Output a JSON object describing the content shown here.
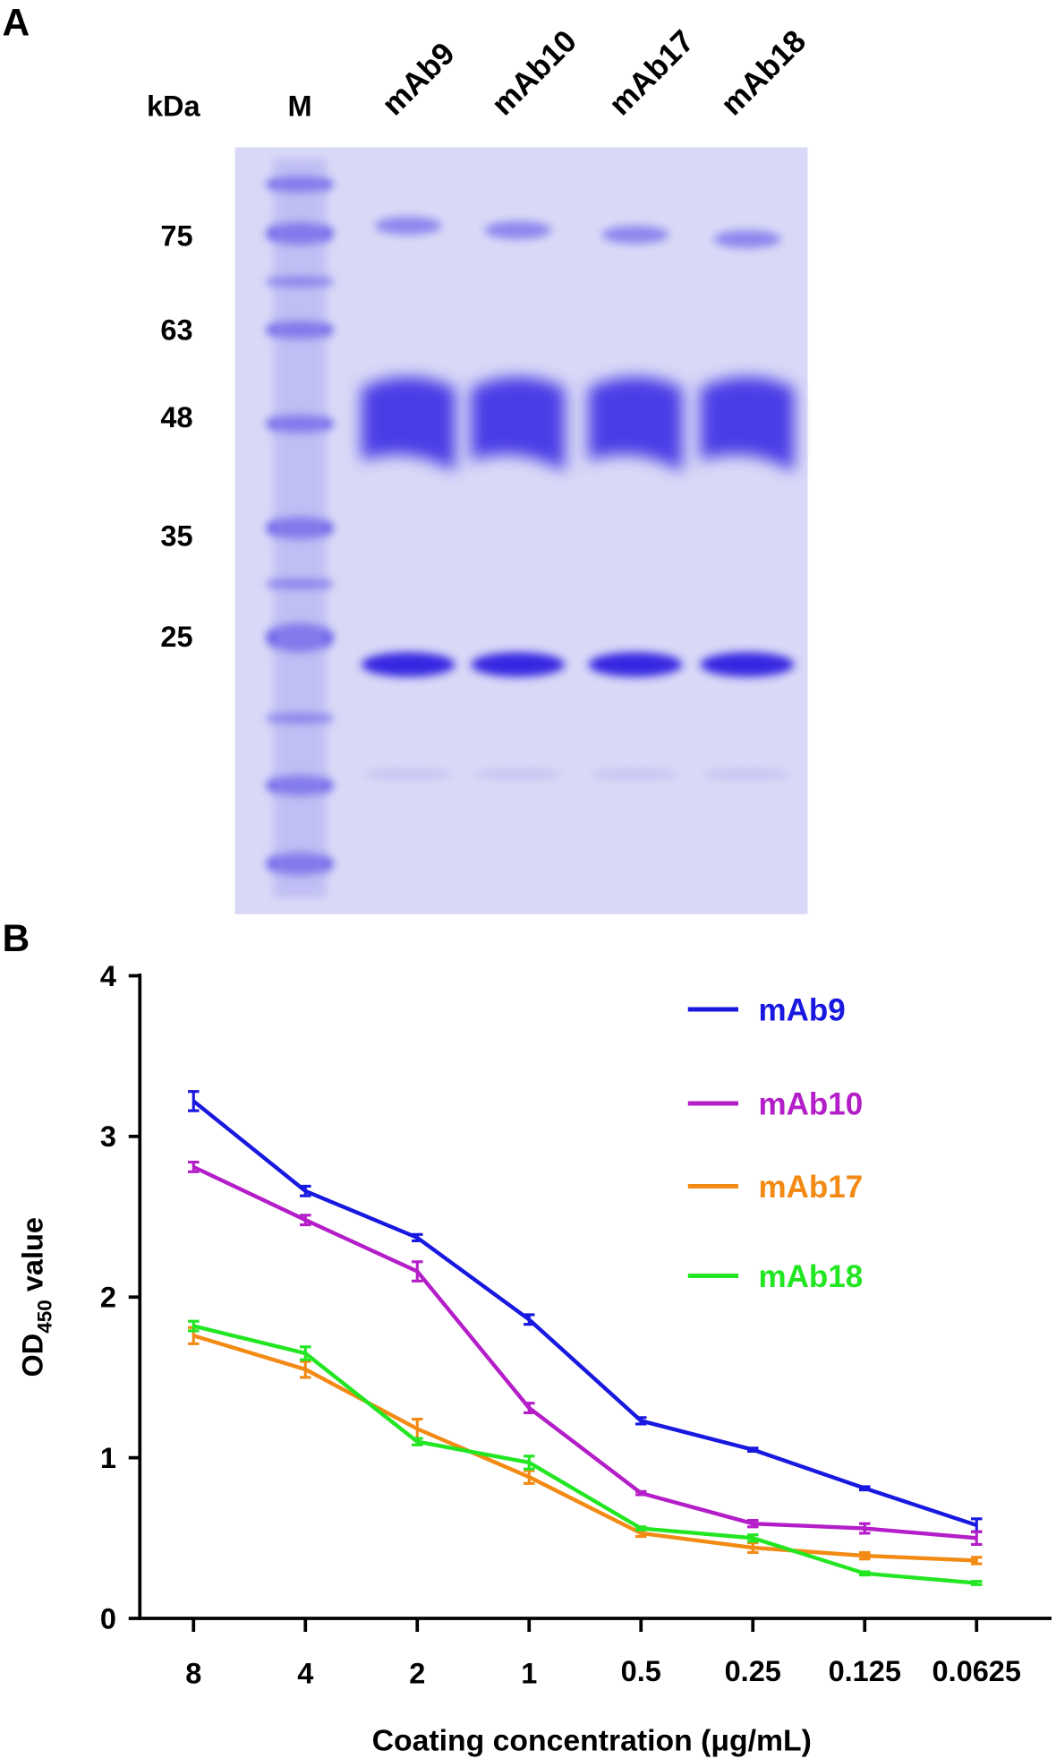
{
  "gel": {
    "panel_label": "A",
    "unit_label": "kDa",
    "lanes": [
      "M",
      "mAb9",
      "mAb10",
      "mAb17",
      "mAb18"
    ],
    "markers": [
      75,
      63,
      48,
      35,
      25
    ]
  },
  "chart_data": {
    "type": "line",
    "panel_label": "B",
    "xlabel": "Coating concentration (μg/mL)",
    "ylabel": [
      "OD",
      "450",
      " value"
    ],
    "categories": [
      "8",
      "4",
      "2",
      "1",
      "0.5",
      "0.25",
      "0.125",
      "0.0625"
    ],
    "ylim": [
      0,
      4
    ],
    "yticks": [
      0,
      1,
      2,
      3,
      4
    ],
    "legend": "top-right",
    "series": [
      {
        "name": "mAb9",
        "color": "#1818e0",
        "values": [
          3.22,
          2.66,
          2.37,
          1.86,
          1.23,
          1.05,
          0.81,
          0.58
        ],
        "errors": [
          0.06,
          0.03,
          0.02,
          0.03,
          0.02,
          0.01,
          0.01,
          0.04
        ]
      },
      {
        "name": "mAb10",
        "color": "#b41ec8",
        "values": [
          2.81,
          2.48,
          2.16,
          1.31,
          0.78,
          0.59,
          0.56,
          0.5
        ],
        "errors": [
          0.03,
          0.03,
          0.06,
          0.03,
          0.01,
          0.02,
          0.03,
          0.04
        ]
      },
      {
        "name": "mAb17",
        "color": "#f28a14",
        "values": [
          1.76,
          1.55,
          1.18,
          0.88,
          0.53,
          0.44,
          0.39,
          0.36
        ],
        "errors": [
          0.05,
          0.05,
          0.06,
          0.04,
          0.02,
          0.03,
          0.02,
          0.02
        ]
      },
      {
        "name": "mAb18",
        "color": "#22e622",
        "values": [
          1.82,
          1.65,
          1.1,
          0.97,
          0.56,
          0.5,
          0.28,
          0.22
        ],
        "errors": [
          0.03,
          0.04,
          0.02,
          0.04,
          0.01,
          0.02,
          0.01,
          0.01
        ]
      }
    ]
  }
}
